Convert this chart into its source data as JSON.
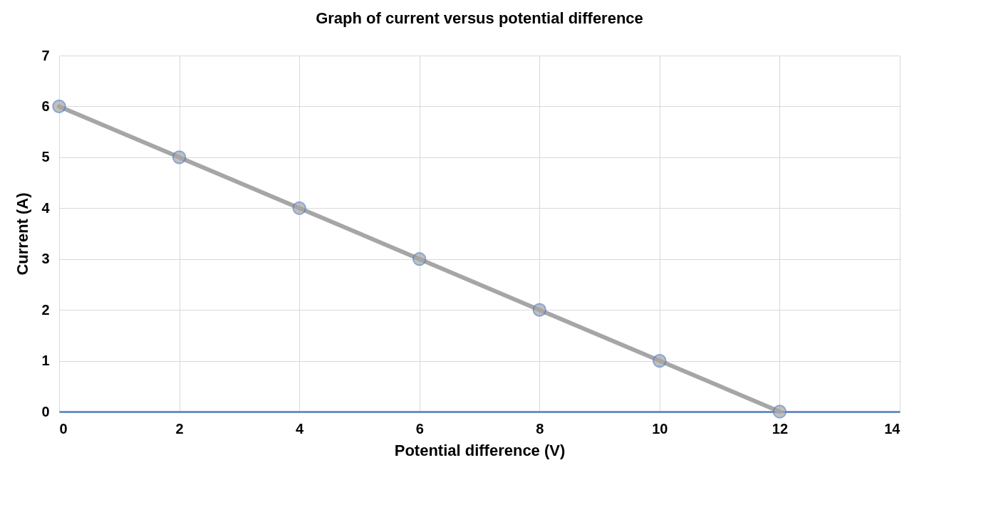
{
  "chart_data": {
    "type": "line",
    "title": "Graph of current versus potential difference",
    "xlabel": "Potential difference (V)",
    "ylabel": "Current (A)",
    "x": [
      0,
      2,
      4,
      6,
      8,
      10,
      12
    ],
    "series": [
      {
        "color": "#a6a6a6",
        "values": [
          6,
          5,
          4,
          3,
          2,
          1,
          0
        ]
      }
    ],
    "xlim": [
      0,
      14
    ],
    "xticks": [
      0,
      2,
      4,
      6,
      8,
      10,
      12,
      14
    ],
    "ylim": [
      0,
      7
    ],
    "yticks": [
      0,
      1,
      2,
      3,
      4,
      5,
      6,
      7
    ],
    "grid": true,
    "marker": "circle",
    "line_style": "solid"
  }
}
